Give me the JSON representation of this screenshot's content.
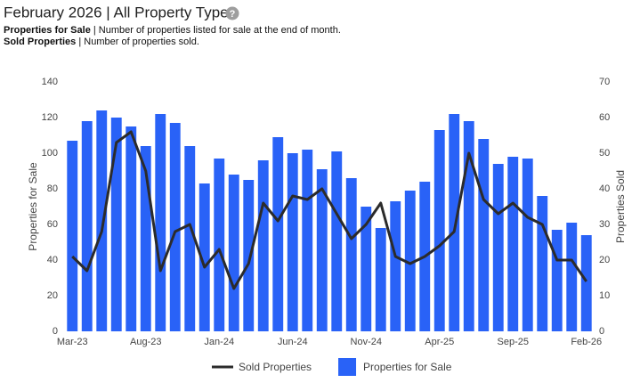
{
  "chart_data": {
    "type": "bar_line",
    "title": "February 2026 | All Property Types",
    "title_icon": "?",
    "notes": [
      {
        "term": "Properties for Sale",
        "text": " | Number of properties listed for sale at the end of month."
      },
      {
        "term": "Sold Properties",
        "text": " | Number of properties sold."
      }
    ],
    "y_label": "Properties for Sale",
    "y2_label": "Properties Sold",
    "categories": [
      "Mar-23",
      null,
      null,
      null,
      null,
      "Aug-23",
      null,
      null,
      null,
      null,
      "Jan-24",
      null,
      null,
      null,
      null,
      "Jun-24",
      null,
      null,
      null,
      null,
      "Nov-24",
      null,
      null,
      null,
      null,
      "Apr-25",
      null,
      null,
      null,
      null,
      "Sep-25",
      null,
      null,
      null,
      null,
      "Feb-26"
    ],
    "series": [
      {
        "name": "Properties for Sale",
        "type": "bar",
        "color": "#2962f7",
        "values": [
          107,
          118,
          124,
          120,
          115,
          104,
          122,
          117,
          104,
          83,
          97,
          88,
          85,
          96,
          109,
          100,
          102,
          91,
          101,
          86,
          70,
          58,
          73,
          79,
          84,
          113,
          122,
          118,
          108,
          94,
          98,
          97,
          76,
          57,
          61,
          54
        ]
      },
      {
        "name": "Sold Properties",
        "type": "line",
        "axis": "y2",
        "color": "#2b2b2b",
        "values": [
          21,
          17,
          28,
          53,
          56,
          45,
          17,
          28,
          30,
          18,
          23,
          12,
          19,
          36,
          31,
          38,
          37,
          40,
          33,
          26,
          30,
          36,
          21,
          19,
          21,
          24,
          28,
          50,
          37,
          33,
          36,
          32,
          30,
          20,
          20,
          14
        ]
      }
    ],
    "ylim": [
      0,
      140
    ],
    "yticks": [
      0,
      20,
      40,
      60,
      80,
      100,
      120,
      140
    ],
    "y2lim": [
      0,
      70
    ],
    "y2ticks": [
      0,
      10,
      20,
      30,
      40,
      50,
      60,
      70
    ],
    "grid": false,
    "legend": "bottom"
  }
}
